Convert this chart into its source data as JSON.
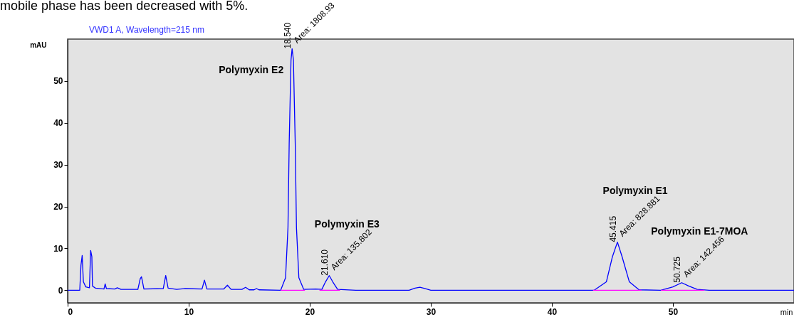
{
  "chart_data": {
    "type": "line",
    "title": "VWD1 A, Wavelength=215 nm",
    "xlabel": "min",
    "ylabel": "mAU",
    "xlim": [
      0,
      60
    ],
    "xticks": [
      0,
      10,
      20,
      30,
      40,
      50
    ],
    "ylim": [
      -3,
      60
    ],
    "yticks": [
      0,
      10,
      20,
      30,
      40,
      50
    ],
    "grid": false,
    "marker": "none",
    "line_style": "solid",
    "series": [
      {
        "color": "#0000ff",
        "x": [
          0,
          1.0,
          1.1,
          1.2,
          1.3,
          1.5,
          1.8,
          1.9,
          2.0,
          2.05,
          2.3,
          3.0,
          3.1,
          3.2,
          3.9,
          4.1,
          4.4,
          5.8,
          6.0,
          6.1,
          6.3,
          7.9,
          8.1,
          8.3,
          9.0,
          9.7,
          11.1,
          11.3,
          11.5,
          12.9,
          13.2,
          13.5,
          14.4,
          14.7,
          15.0,
          15.4,
          15.6,
          15.8,
          17.6,
          18.0,
          18.2,
          18.3,
          18.45,
          18.54,
          18.65,
          18.8,
          18.9,
          19.1,
          19.5,
          20.5,
          21.0,
          21.3,
          21.61,
          21.9,
          22.3,
          23.8,
          28.2,
          28.7,
          29.1,
          29.5,
          30.0,
          40,
          43.5,
          44.5,
          45.0,
          45.415,
          45.8,
          46.4,
          47.2,
          49.0,
          50.0,
          50.725,
          51.3,
          52,
          53,
          60
        ],
        "values": [
          0,
          0,
          6,
          8.3,
          2,
          0.8,
          0.6,
          9.5,
          8,
          1,
          0.5,
          0.3,
          1.5,
          0.4,
          0.3,
          0.6,
          0.2,
          0.2,
          2.8,
          3.2,
          0.3,
          0.4,
          3.5,
          0.5,
          0.2,
          0.4,
          0.3,
          2.4,
          0.3,
          0.3,
          1.2,
          0.2,
          0.2,
          0.7,
          0.1,
          0.1,
          0.4,
          0.1,
          0,
          3,
          15,
          35,
          55,
          57.7,
          55,
          35,
          15,
          3,
          0.2,
          0.3,
          0.2,
          2,
          3.5,
          2,
          0.2,
          0,
          0,
          0.5,
          0.7,
          0.4,
          0,
          0,
          0,
          2,
          8,
          11.5,
          8,
          2,
          0.1,
          0,
          0.8,
          1.8,
          1.0,
          0.2,
          0,
          0
        ]
      },
      {
        "color": "#ff00ff",
        "x": [
          17.6,
          19.6,
          20.2,
          20.8,
          22.5,
          33,
          43.4,
          47.4,
          48.2,
          49.0,
          52.6
        ],
        "values": [
          0,
          0,
          null,
          0,
          0,
          null,
          0,
          0,
          null,
          0,
          0
        ]
      }
    ],
    "annotations": [
      "mobile phase has been decreased with 5%.",
      "Polymyxin E2",
      {
        "text": "18.540",
        "x": 18.54,
        "y": 57.7
      },
      {
        "text": "Area: 1808.93",
        "x": 18.54,
        "y": 57.7
      },
      "Polymyxin E3",
      {
        "text": "21.610",
        "x": 21.61,
        "y": 3.5
      },
      {
        "text": "Area: 135.802",
        "x": 21.61,
        "y": 3.5
      },
      "Polymyxin E1",
      {
        "text": "45.415",
        "x": 45.415,
        "y": 11.5
      },
      {
        "text": "Area: 828.881",
        "x": 45.415,
        "y": 11.5
      },
      "Polymyxin E1-7MOA",
      {
        "text": "50.725",
        "x": 50.725,
        "y": 1.8
      },
      {
        "text": "Area: 142.456",
        "x": 50.725,
        "y": 1.8
      }
    ]
  }
}
